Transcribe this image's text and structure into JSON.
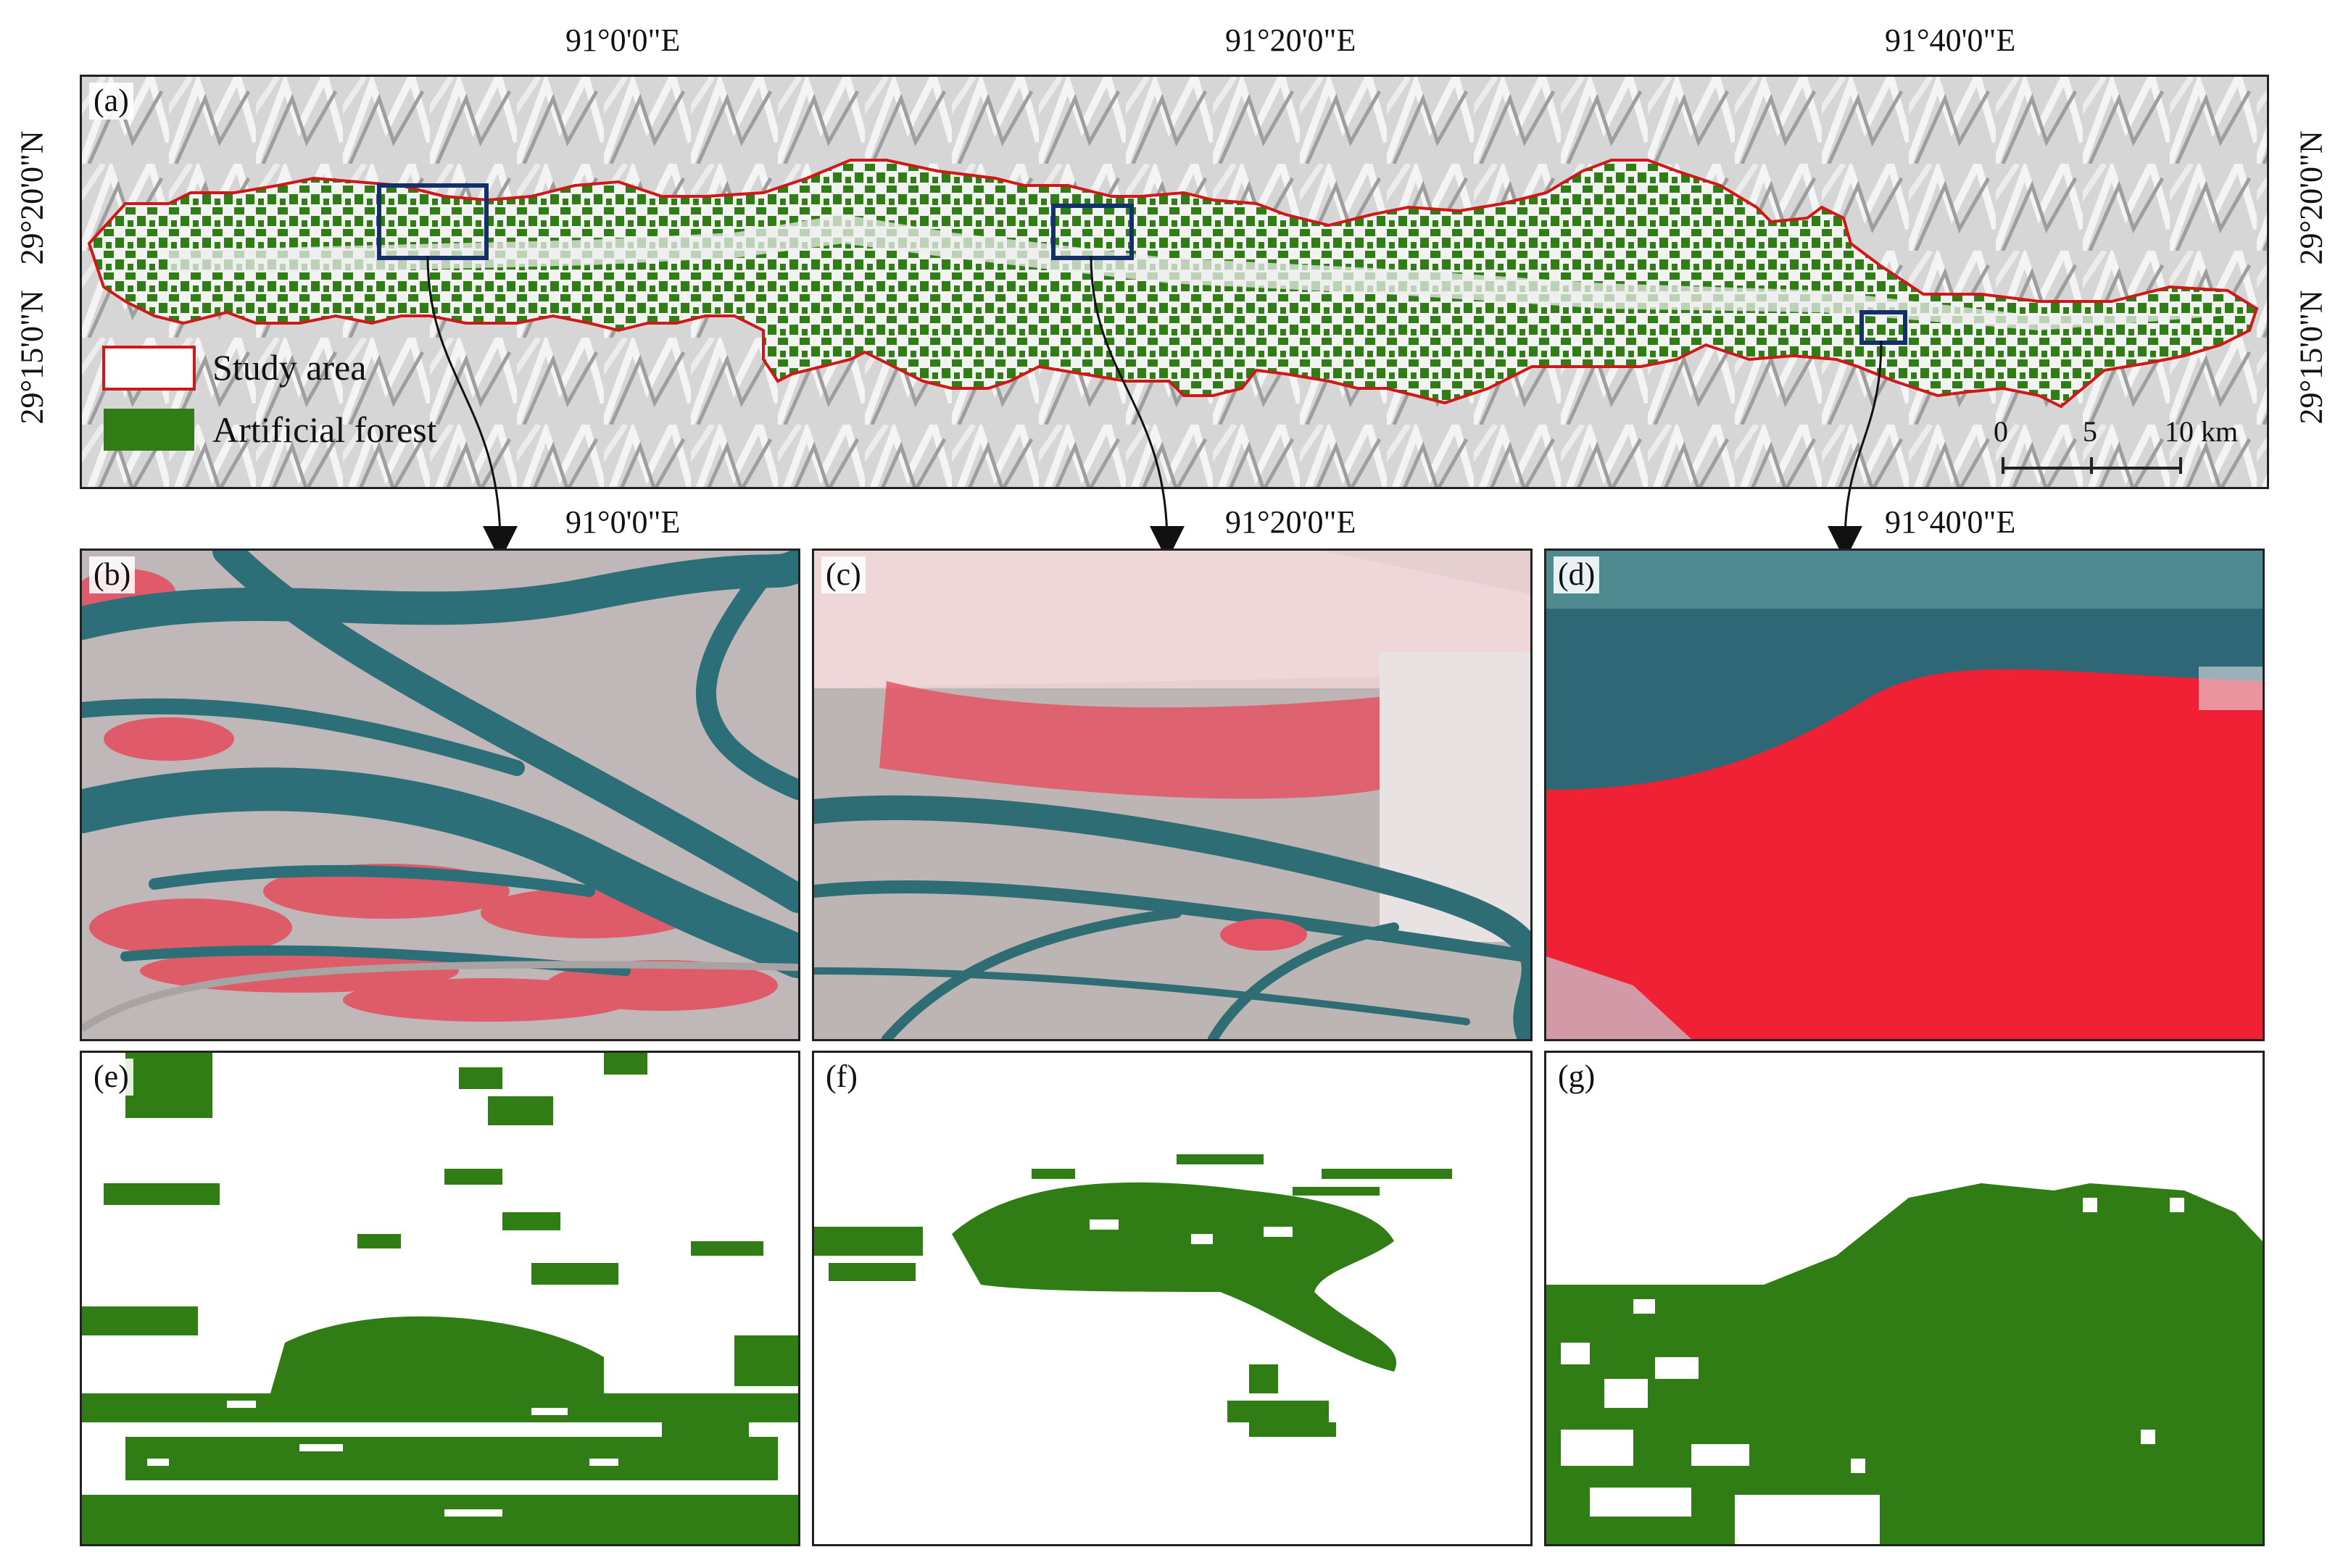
{
  "map": {
    "top_lon_labels": [
      "91°0'0\"E",
      "91°20'0\"E",
      "91°40'0\"E"
    ],
    "middle_lon_labels": [
      "91°0'0\"E",
      "91°20'0\"E",
      "91°40'0\"E"
    ],
    "left_lat_labels": [
      "29°20'0\"N",
      "29°15'0\"N"
    ],
    "right_lat_labels": [
      "29°20'0\"N",
      "29°15'0\"N"
    ],
    "legend": {
      "study_area": "Study area",
      "artificial_forest": "Artificial forest"
    },
    "scalebar": {
      "ticks": [
        "0",
        "5",
        "10 km"
      ]
    }
  },
  "panels": {
    "a": "(a)",
    "b": "(b)",
    "c": "(c)",
    "d": "(d)",
    "e": "(e)",
    "f": "(f)",
    "g": "(g)"
  },
  "colors": {
    "forest": "#2f7d14",
    "boundary": "#d01818",
    "inset_box": "#13306a",
    "hillshade": "#d4d4d4",
    "water": "#2c6f78",
    "vegetation_false_color": "#f02035"
  }
}
